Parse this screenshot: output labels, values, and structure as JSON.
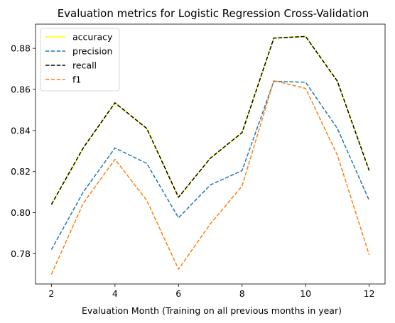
{
  "chart_data": {
    "type": "line",
    "title": "Evaluation metrics for Logistic Regression Cross-Validation",
    "xlabel": "Evaluation Month (Training on all previous months in year)",
    "ylabel": "",
    "x": [
      2,
      3,
      4,
      5,
      6,
      7,
      8,
      9,
      10,
      11,
      12
    ],
    "xlim": [
      1.5,
      12.5
    ],
    "ylim": [
      0.7653,
      0.8918
    ],
    "xticks": [
      "2",
      "4",
      "6",
      "8",
      "10",
      "12"
    ],
    "yticks": [
      "0.78",
      "0.80",
      "0.82",
      "0.84",
      "0.86",
      "0.88"
    ],
    "grid": false,
    "legend_position": "top-left",
    "series": [
      {
        "name": "accuracy",
        "color": "#ffff00",
        "style": "solid",
        "values": [
          0.804,
          0.8315,
          0.8535,
          0.841,
          0.8075,
          0.8265,
          0.839,
          0.885,
          0.8858,
          0.864,
          0.8205
        ]
      },
      {
        "name": "precision",
        "color": "#1f77b4",
        "style": "dashed",
        "values": [
          0.782,
          0.81,
          0.8315,
          0.824,
          0.7975,
          0.8135,
          0.8205,
          0.864,
          0.8635,
          0.841,
          0.806
        ]
      },
      {
        "name": "recall",
        "color": "#000000",
        "style": "dashed",
        "values": [
          0.804,
          0.8315,
          0.8535,
          0.841,
          0.8075,
          0.8265,
          0.839,
          0.885,
          0.8858,
          0.864,
          0.8205
        ]
      },
      {
        "name": "f1",
        "color": "#ff7f0e",
        "style": "dashed",
        "values": [
          0.77,
          0.8045,
          0.826,
          0.806,
          0.7725,
          0.7945,
          0.813,
          0.8643,
          0.8605,
          0.828,
          0.7795
        ]
      }
    ]
  }
}
